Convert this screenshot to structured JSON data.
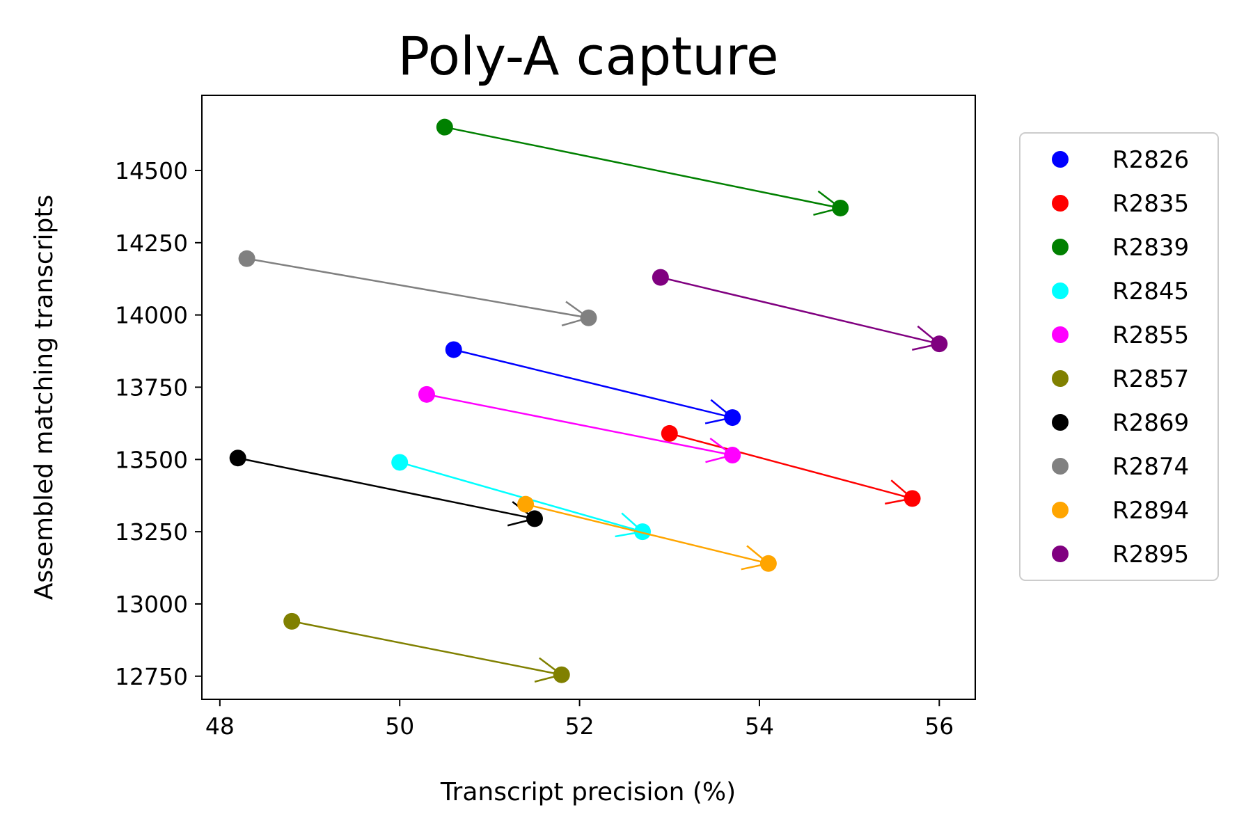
{
  "chart_data": {
    "type": "scatter",
    "title": "Poly-A capture",
    "xlabel": "Transcript precision (%)",
    "ylabel": "Assembled matching transcripts",
    "xlim": [
      47.8,
      56.4
    ],
    "ylim": [
      12670,
      14760
    ],
    "xticks": [
      48,
      50,
      52,
      54,
      56
    ],
    "yticks": [
      12750,
      13000,
      13250,
      13500,
      13750,
      14000,
      14250,
      14500
    ],
    "grid": false,
    "legend_position": "right",
    "annotations": "arrows point from first to second point of each series",
    "series": [
      {
        "name": "R2826",
        "color": "#0000ff",
        "points": [
          {
            "x": 50.6,
            "y": 13880
          },
          {
            "x": 53.7,
            "y": 13645
          }
        ]
      },
      {
        "name": "R2835",
        "color": "#ff0000",
        "points": [
          {
            "x": 53.0,
            "y": 13590
          },
          {
            "x": 55.7,
            "y": 13365
          }
        ]
      },
      {
        "name": "R2839",
        "color": "#008000",
        "points": [
          {
            "x": 50.5,
            "y": 14650
          },
          {
            "x": 54.9,
            "y": 14370
          }
        ]
      },
      {
        "name": "R2845",
        "color": "#00ffff",
        "points": [
          {
            "x": 50.0,
            "y": 13490
          },
          {
            "x": 52.7,
            "y": 13250
          }
        ]
      },
      {
        "name": "R2855",
        "color": "#ff00ff",
        "points": [
          {
            "x": 50.3,
            "y": 13725
          },
          {
            "x": 53.7,
            "y": 13515
          }
        ]
      },
      {
        "name": "R2857",
        "color": "#808000",
        "points": [
          {
            "x": 48.8,
            "y": 12940
          },
          {
            "x": 51.8,
            "y": 12755
          }
        ]
      },
      {
        "name": "R2869",
        "color": "#000000",
        "points": [
          {
            "x": 48.2,
            "y": 13505
          },
          {
            "x": 51.5,
            "y": 13295
          }
        ]
      },
      {
        "name": "R2874",
        "color": "#808080",
        "points": [
          {
            "x": 48.3,
            "y": 14195
          },
          {
            "x": 52.1,
            "y": 13990
          }
        ]
      },
      {
        "name": "R2894",
        "color": "#ffa500",
        "points": [
          {
            "x": 51.4,
            "y": 13345
          },
          {
            "x": 54.1,
            "y": 13140
          }
        ]
      },
      {
        "name": "R2895",
        "color": "#800080",
        "points": [
          {
            "x": 52.9,
            "y": 14130
          },
          {
            "x": 56.0,
            "y": 13900
          }
        ]
      }
    ]
  }
}
